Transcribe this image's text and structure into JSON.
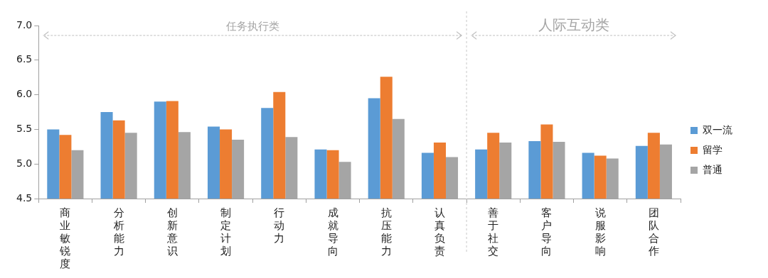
{
  "chart_data": {
    "type": "bar",
    "categories": [
      "商业敏锐度",
      "分析能力",
      "创新意识",
      "制定计划",
      "行动力",
      "成就导向",
      "抗压能力",
      "认真负责",
      "善于社交",
      "客户导向",
      "说服影响",
      "团队合作"
    ],
    "series": [
      {
        "name": "双一流",
        "color": "#5b9bd5",
        "values": [
          5.5,
          5.75,
          5.9,
          5.54,
          5.81,
          5.21,
          5.95,
          5.16,
          5.21,
          5.33,
          5.16,
          5.26
        ]
      },
      {
        "name": "留学",
        "color": "#ed7d31",
        "values": [
          5.42,
          5.63,
          5.91,
          5.5,
          6.04,
          5.2,
          6.26,
          5.31,
          5.45,
          5.57,
          5.12,
          5.45
        ]
      },
      {
        "name": "普通",
        "color": "#a5a5a5",
        "values": [
          5.2,
          5.45,
          5.46,
          5.35,
          5.39,
          5.03,
          5.65,
          5.1,
          5.31,
          5.32,
          5.08,
          5.28
        ]
      }
    ],
    "ylim": [
      4.5,
      7.0
    ],
    "yticks": [
      4.5,
      {
        "value": 5,
        "label": "5.0"
      },
      5.5,
      {
        "value": 6,
        "label": "6.0"
      },
      6.5,
      {
        "value": 7,
        "label": "7.0"
      }
    ],
    "annotations": [
      "任务执行类",
      "人际互动类"
    ],
    "grid": false,
    "legend": "right"
  }
}
